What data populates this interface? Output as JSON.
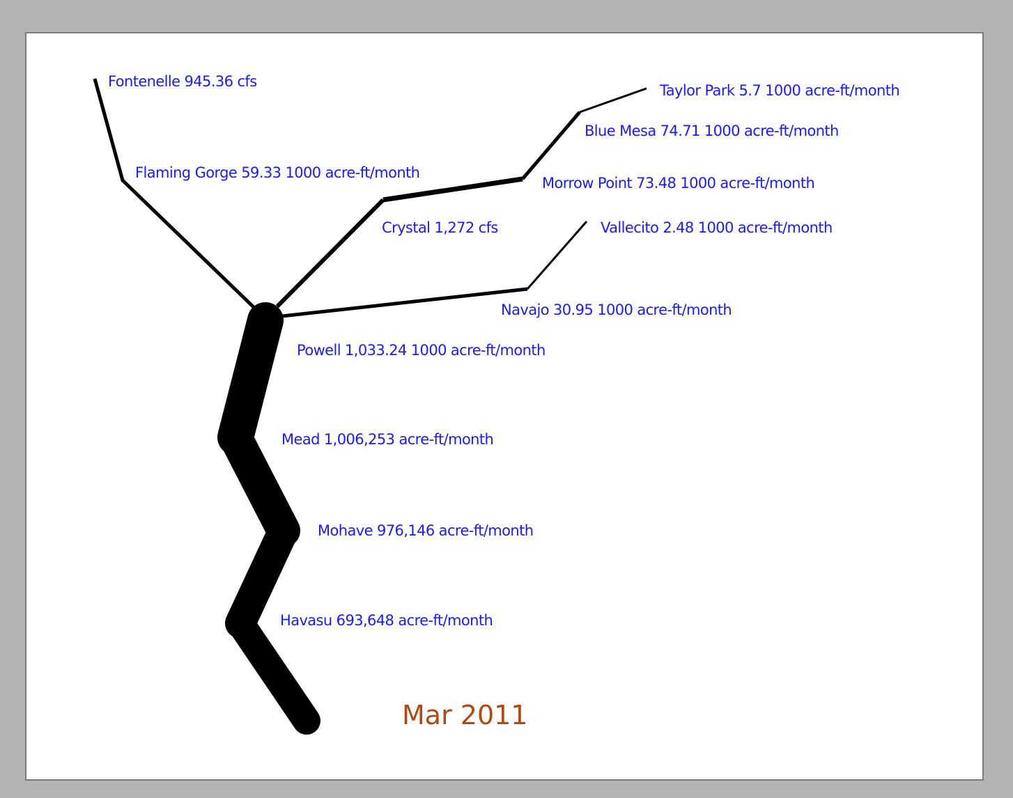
{
  "date_label": "Mar 2011",
  "colors": {
    "label": "#1a1aff",
    "date": "#b04a10",
    "river": "#000000",
    "background": "#b4b4b4"
  },
  "reservoirs": [
    {
      "id": "fontenelle",
      "label": "Fontenelle 945.36 cfs"
    },
    {
      "id": "flaming-gorge",
      "label": "Flaming Gorge 59.33 1000 acre-ft/month"
    },
    {
      "id": "taylor-park",
      "label": "Taylor Park 5.7 1000 acre-ft/month"
    },
    {
      "id": "blue-mesa",
      "label": "Blue Mesa 74.71 1000 acre-ft/month"
    },
    {
      "id": "morrow-point",
      "label": "Morrow Point 73.48 1000 acre-ft/month"
    },
    {
      "id": "crystal",
      "label": "Crystal 1,272 cfs"
    },
    {
      "id": "vallecito",
      "label": "Vallecito 2.48 1000 acre-ft/month"
    },
    {
      "id": "navajo",
      "label": "Navajo 30.95 1000 acre-ft/month"
    },
    {
      "id": "powell",
      "label": "Powell 1,033.24 1000 acre-ft/month"
    },
    {
      "id": "mead",
      "label": "Mead 1,006,253 acre-ft/month"
    },
    {
      "id": "mohave",
      "label": "Mohave 976,146 acre-ft/month"
    },
    {
      "id": "havasu",
      "label": "Havasu 693,648 acre-ft/month"
    }
  ]
}
